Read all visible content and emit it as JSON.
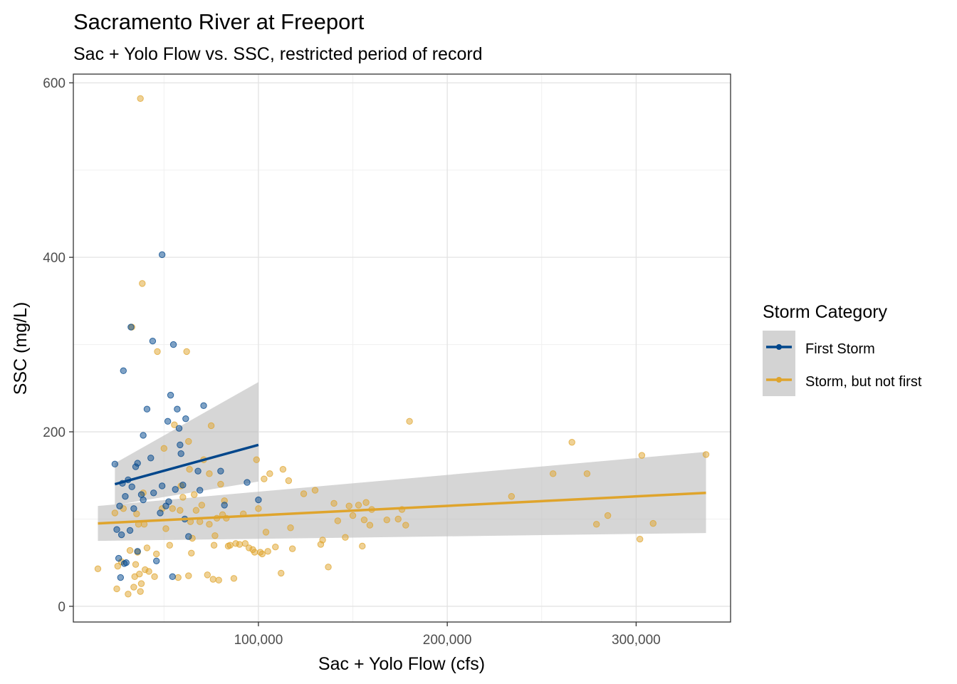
{
  "chart_data": {
    "type": "scatter",
    "title": "Sacramento River at Freeport",
    "subtitle": "Sac + Yolo Flow vs. SSC, restricted period of record",
    "xlabel": "Sac + Yolo Flow (cfs)",
    "ylabel": "SSC (mg/L)",
    "xlim": [
      2000,
      350000
    ],
    "ylim": [
      -18,
      610
    ],
    "x_ticks": [
      100000,
      200000,
      300000
    ],
    "x_tick_labels": [
      "100,000",
      "200,000",
      "300,000"
    ],
    "y_ticks": [
      0,
      200,
      400,
      600
    ],
    "y_tick_labels": [
      "0",
      "200",
      "400",
      "600"
    ],
    "grid": true,
    "legend": {
      "title": "Storm Category",
      "position": "right",
      "entries": [
        "First Storm",
        "Storm, but not first"
      ]
    },
    "series": [
      {
        "name": "First Storm",
        "color": "#00468B",
        "points": [
          [
            24000,
            163
          ],
          [
            25000,
            88
          ],
          [
            26000,
            55
          ],
          [
            26500,
            115
          ],
          [
            27000,
            33
          ],
          [
            27500,
            82
          ],
          [
            28000,
            141
          ],
          [
            28500,
            270
          ],
          [
            29000,
            49
          ],
          [
            29500,
            126
          ],
          [
            30000,
            50
          ],
          [
            31000,
            145
          ],
          [
            32000,
            87
          ],
          [
            32500,
            320
          ],
          [
            33000,
            137
          ],
          [
            34000,
            112
          ],
          [
            35000,
            160
          ],
          [
            36000,
            63
          ],
          [
            36000,
            164
          ],
          [
            38000,
            128
          ],
          [
            39000,
            196
          ],
          [
            39000,
            122
          ],
          [
            41000,
            226
          ],
          [
            43000,
            170
          ],
          [
            44000,
            304
          ],
          [
            44500,
            130
          ],
          [
            46000,
            52
          ],
          [
            48000,
            107
          ],
          [
            49000,
            403
          ],
          [
            49000,
            138
          ],
          [
            51000,
            115
          ],
          [
            52000,
            212
          ],
          [
            52500,
            120
          ],
          [
            53500,
            242
          ],
          [
            54500,
            34
          ],
          [
            55000,
            300
          ],
          [
            56000,
            134
          ],
          [
            57000,
            226
          ],
          [
            58000,
            204
          ],
          [
            58500,
            185
          ],
          [
            59000,
            175
          ],
          [
            60000,
            139
          ],
          [
            61000,
            100
          ],
          [
            61500,
            215
          ],
          [
            63000,
            80
          ],
          [
            68000,
            155
          ],
          [
            69000,
            133
          ],
          [
            71000,
            230
          ],
          [
            80000,
            155
          ],
          [
            82000,
            116
          ],
          [
            94000,
            142
          ],
          [
            100000,
            122
          ]
        ],
        "fit": {
          "x": [
            24000,
            100000
          ],
          "y": [
            140,
            185
          ],
          "ci_lower": [
            116,
            143
          ],
          "ci_upper": [
            164,
            257
          ]
        }
      },
      {
        "name": "Storm, but not first",
        "color": "#DFA42C",
        "points": [
          [
            15000,
            43
          ],
          [
            24000,
            107
          ],
          [
            25000,
            20
          ],
          [
            25500,
            46
          ],
          [
            27500,
            51
          ],
          [
            28500,
            112
          ],
          [
            31000,
            14
          ],
          [
            32000,
            64
          ],
          [
            33000,
            320
          ],
          [
            34000,
            22
          ],
          [
            34500,
            34
          ],
          [
            35000,
            48
          ],
          [
            35500,
            106
          ],
          [
            36000,
            62
          ],
          [
            36500,
            94
          ],
          [
            37000,
            37
          ],
          [
            37500,
            582
          ],
          [
            37500,
            17
          ],
          [
            38000,
            26
          ],
          [
            38500,
            370
          ],
          [
            39000,
            130
          ],
          [
            39500,
            94
          ],
          [
            40000,
            42
          ],
          [
            41000,
            67
          ],
          [
            42000,
            40
          ],
          [
            45000,
            34
          ],
          [
            46000,
            60
          ],
          [
            46500,
            292
          ],
          [
            49000,
            112
          ],
          [
            50000,
            181
          ],
          [
            51000,
            89
          ],
          [
            53000,
            70
          ],
          [
            54500,
            112
          ],
          [
            55500,
            208
          ],
          [
            57500,
            33
          ],
          [
            58500,
            110
          ],
          [
            59000,
            138
          ],
          [
            60000,
            125
          ],
          [
            62000,
            292
          ],
          [
            63000,
            35
          ],
          [
            63000,
            189
          ],
          [
            63500,
            157
          ],
          [
            64000,
            97
          ],
          [
            64500,
            61
          ],
          [
            65000,
            78
          ],
          [
            66000,
            128
          ],
          [
            67000,
            110
          ],
          [
            69000,
            97
          ],
          [
            70000,
            116
          ],
          [
            71000,
            168
          ],
          [
            73000,
            36
          ],
          [
            74000,
            152
          ],
          [
            74000,
            94
          ],
          [
            75000,
            207
          ],
          [
            76000,
            31
          ],
          [
            76500,
            70
          ],
          [
            77000,
            81
          ],
          [
            78000,
            101
          ],
          [
            79000,
            30
          ],
          [
            80000,
            140
          ],
          [
            81000,
            105
          ],
          [
            82000,
            121
          ],
          [
            83000,
            101
          ],
          [
            84000,
            69
          ],
          [
            85000,
            70
          ],
          [
            87000,
            32
          ],
          [
            88000,
            72
          ],
          [
            90000,
            71
          ],
          [
            92000,
            106
          ],
          [
            93000,
            72
          ],
          [
            95000,
            67
          ],
          [
            97000,
            65
          ],
          [
            98000,
            62
          ],
          [
            99000,
            168
          ],
          [
            100000,
            112
          ],
          [
            101000,
            62
          ],
          [
            102000,
            60
          ],
          [
            104000,
            85
          ],
          [
            105000,
            63
          ],
          [
            103000,
            146
          ],
          [
            106000,
            152
          ],
          [
            109000,
            68
          ],
          [
            112000,
            38
          ],
          [
            113000,
            157
          ],
          [
            116000,
            144
          ],
          [
            117000,
            90
          ],
          [
            118000,
            66
          ],
          [
            124000,
            129
          ],
          [
            130000,
            133
          ],
          [
            133000,
            71
          ],
          [
            134000,
            76
          ],
          [
            137000,
            45
          ],
          [
            140000,
            118
          ],
          [
            142000,
            98
          ],
          [
            146000,
            79
          ],
          [
            148000,
            115
          ],
          [
            150000,
            104
          ],
          [
            153000,
            116
          ],
          [
            155000,
            69
          ],
          [
            156000,
            99
          ],
          [
            157000,
            119
          ],
          [
            159000,
            93
          ],
          [
            160000,
            111
          ],
          [
            168000,
            99
          ],
          [
            174000,
            100
          ],
          [
            176000,
            111
          ],
          [
            178000,
            93
          ],
          [
            180000,
            212
          ],
          [
            234000,
            126
          ],
          [
            256000,
            152
          ],
          [
            266000,
            188
          ],
          [
            274000,
            152
          ],
          [
            279000,
            94
          ],
          [
            285000,
            104
          ],
          [
            302000,
            77
          ],
          [
            303000,
            173
          ],
          [
            309000,
            95
          ],
          [
            337000,
            174
          ]
        ],
        "fit": {
          "x": [
            15000,
            337000
          ],
          "y": [
            95,
            130
          ],
          "ci_lower": [
            75,
            84
          ],
          "ci_upper": [
            115,
            177
          ]
        }
      }
    ]
  }
}
